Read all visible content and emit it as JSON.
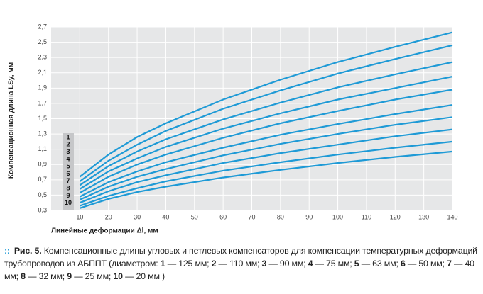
{
  "chart_data": {
    "type": "line",
    "xlabel": "Линейные деформации Δl, мм",
    "ylabel": "Компенсационная длина LSy, мм",
    "x": [
      10,
      20,
      30,
      40,
      60,
      80,
      100,
      120,
      140
    ],
    "xlim": [
      0,
      140
    ],
    "xticks": [
      10,
      20,
      30,
      40,
      50,
      60,
      70,
      80,
      90,
      100,
      110,
      120,
      130,
      140
    ],
    "ylim": [
      0.3,
      2.7
    ],
    "yticks": [
      {
        "value": 0.3,
        "label": "0,3"
      },
      {
        "value": 0.5,
        "label": "0,5"
      },
      {
        "value": 0.7,
        "label": "0,7"
      },
      {
        "value": 0.9,
        "label": "0,9"
      },
      {
        "value": 1.1,
        "label": "1,1"
      },
      {
        "value": 1.3,
        "label": "1,3"
      },
      {
        "value": 1.5,
        "label": "1,5"
      },
      {
        "value": 1.7,
        "label": "1,7"
      },
      {
        "value": 1.9,
        "label": "1,9"
      },
      {
        "value": 2.1,
        "label": "2,1"
      },
      {
        "value": 2.3,
        "label": "2,3"
      },
      {
        "value": 2.5,
        "label": "2,5"
      },
      {
        "value": 2.7,
        "label": "2,7"
      }
    ],
    "grid": true,
    "series": [
      {
        "name": "1",
        "color": "#1e9ad6",
        "values": [
          0.74,
          1.03,
          1.26,
          1.44,
          1.75,
          2.01,
          2.24,
          2.44,
          2.63
        ]
      },
      {
        "name": "2",
        "color": "#1e9ad6",
        "values": [
          0.68,
          0.95,
          1.16,
          1.34,
          1.63,
          1.87,
          2.09,
          2.28,
          2.46
        ]
      },
      {
        "name": "3",
        "color": "#1e9ad6",
        "values": [
          0.63,
          0.88,
          1.07,
          1.23,
          1.49,
          1.71,
          1.91,
          2.08,
          2.24
        ]
      },
      {
        "name": "4",
        "color": "#1e9ad6",
        "values": [
          0.58,
          0.81,
          0.98,
          1.13,
          1.37,
          1.57,
          1.75,
          1.9,
          2.05
        ]
      },
      {
        "name": "5",
        "color": "#1e9ad6",
        "values": [
          0.53,
          0.74,
          0.9,
          1.03,
          1.25,
          1.44,
          1.6,
          1.75,
          1.88
        ]
      },
      {
        "name": "6",
        "color": "#1e9ad6",
        "values": [
          0.48,
          0.67,
          0.81,
          0.93,
          1.12,
          1.29,
          1.43,
          1.56,
          1.68
        ]
      },
      {
        "name": "7",
        "color": "#1e9ad6",
        "values": [
          0.44,
          0.61,
          0.74,
          0.84,
          1.02,
          1.17,
          1.3,
          1.42,
          1.52
        ]
      },
      {
        "name": "8",
        "color": "#1e9ad6",
        "values": [
          0.4,
          0.55,
          0.67,
          0.76,
          0.92,
          1.05,
          1.16,
          1.27,
          1.36
        ]
      },
      {
        "name": "9",
        "color": "#1e9ad6",
        "values": [
          0.36,
          0.49,
          0.59,
          0.68,
          0.82,
          0.93,
          1.03,
          1.12,
          1.2
        ]
      },
      {
        "name": "10",
        "color": "#1e9ad6",
        "values": [
          0.33,
          0.45,
          0.54,
          0.61,
          0.73,
          0.83,
          0.92,
          1.0,
          1.07
        ]
      }
    ]
  },
  "caption": {
    "label": "Рис. 5.",
    "text": "Компенсационные длины угловых и петлевых компенсаторов для компенсации температурных деформаций трубопроводов из АБППТ (диаметром:",
    "items": [
      [
        "1",
        "— 125 мм;"
      ],
      [
        "2",
        "— 110 мм;"
      ],
      [
        "3",
        "— 90 мм;"
      ],
      [
        "4",
        "— 75 мм;"
      ],
      [
        "5",
        "— 63 мм;"
      ],
      [
        "6",
        "— 50 мм;"
      ],
      [
        "7",
        "— 40 мм;"
      ],
      [
        "8",
        "— 32 мм;"
      ],
      [
        "9",
        "— 25 мм;"
      ],
      [
        "10",
        "— 20 мм"
      ]
    ],
    "end": ")"
  }
}
